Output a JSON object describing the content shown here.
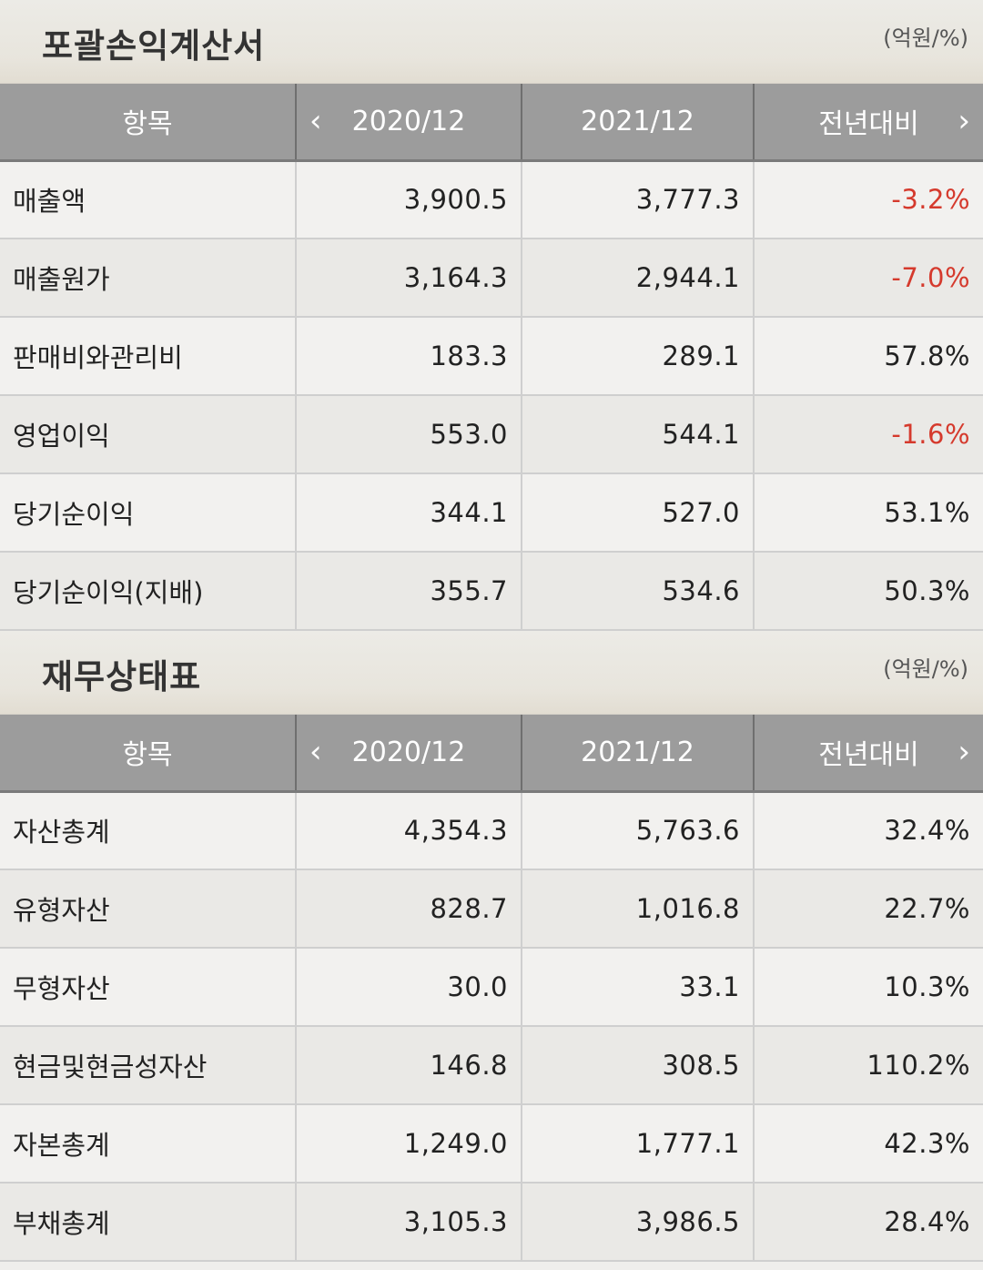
{
  "sections": [
    {
      "title": "포괄손익계산서",
      "unit": "(억원/%)",
      "headers": [
        "항목",
        "2020/12",
        "2021/12",
        "전년대비"
      ],
      "rows": [
        {
          "label": "매출액",
          "v2020": "3,900.5",
          "v2021": "3,777.3",
          "yoy": "-3.2%"
        },
        {
          "label": "매출원가",
          "v2020": "3,164.3",
          "v2021": "2,944.1",
          "yoy": "-7.0%"
        },
        {
          "label": "판매비와관리비",
          "v2020": "183.3",
          "v2021": "289.1",
          "yoy": "57.8%"
        },
        {
          "label": "영업이익",
          "v2020": "553.0",
          "v2021": "544.1",
          "yoy": "-1.6%"
        },
        {
          "label": "당기순이익",
          "v2020": "344.1",
          "v2021": "527.0",
          "yoy": "53.1%"
        },
        {
          "label": "당기순이익(지배)",
          "v2020": "355.7",
          "v2021": "534.6",
          "yoy": "50.3%"
        }
      ]
    },
    {
      "title": "재무상태표",
      "unit": "(억원/%)",
      "headers": [
        "항목",
        "2020/12",
        "2021/12",
        "전년대비"
      ],
      "rows": [
        {
          "label": "자산총계",
          "v2020": "4,354.3",
          "v2021": "5,763.6",
          "yoy": "32.4%"
        },
        {
          "label": "유형자산",
          "v2020": "828.7",
          "v2021": "1,016.8",
          "yoy": "22.7%"
        },
        {
          "label": "무형자산",
          "v2020": "30.0",
          "v2021": "33.1",
          "yoy": "10.3%"
        },
        {
          "label": "현금및현금성자산",
          "v2020": "146.8",
          "v2021": "308.5",
          "yoy": "110.2%"
        },
        {
          "label": "자본총계",
          "v2020": "1,249.0",
          "v2021": "1,777.1",
          "yoy": "42.3%"
        },
        {
          "label": "부채총계",
          "v2020": "3,105.3",
          "v2021": "3,986.5",
          "yoy": "28.4%"
        }
      ]
    }
  ],
  "colors": {
    "negative": "#d53a2d",
    "header_bg": "#9c9c9c"
  },
  "icons": {
    "prev": "chevron-left-icon",
    "next": "chevron-right-icon"
  }
}
